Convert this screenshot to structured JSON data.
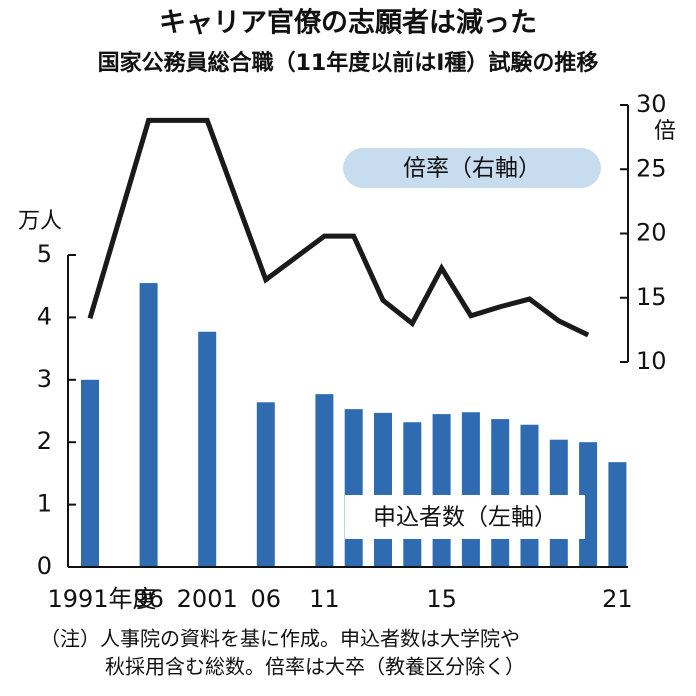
{
  "chart_data": {
    "type": "bar",
    "title": "キャリア官僚の志願者は減った",
    "subtitle": "国家公務員総合職（11年度以前はⅠ種）試験の推移",
    "y_label": "万人",
    "y2_label": "倍",
    "categories": [
      "1991年度",
      "96",
      "2001",
      "06",
      "11",
      null,
      null,
      null,
      "15",
      null,
      null,
      null,
      null,
      null,
      "21"
    ],
    "series": [
      {
        "name": "申込者数（左軸）",
        "color": "#2e6bb0",
        "values": [
          3.0,
          4.55,
          3.77,
          2.64,
          2.77,
          2.53,
          2.47,
          2.32,
          2.45,
          2.48,
          2.37,
          2.28,
          2.04,
          2.0,
          1.68
        ]
      },
      {
        "name": "倍率（右軸）",
        "type": "line",
        "axis": "y2",
        "color": "#1a1a1a",
        "values": [
          13.4,
          28.8,
          28.8,
          16.4,
          19.8,
          19.8,
          14.8,
          13.0,
          17.3,
          13.6,
          14.3,
          14.9,
          13.2,
          12.1,
          null
        ]
      }
    ],
    "ylim": [
      0,
      5
    ],
    "yticks": [
      0,
      1,
      2,
      3,
      4,
      5
    ],
    "y2lim": [
      10,
      30
    ],
    "y2ticks": [
      10,
      15,
      20,
      25,
      30
    ],
    "note": [
      "（注）人事院の資料を基に作成。申込者数は大学院や",
      "秋採用含む総数。倍率は大卒（教養区分除く）"
    ]
  }
}
